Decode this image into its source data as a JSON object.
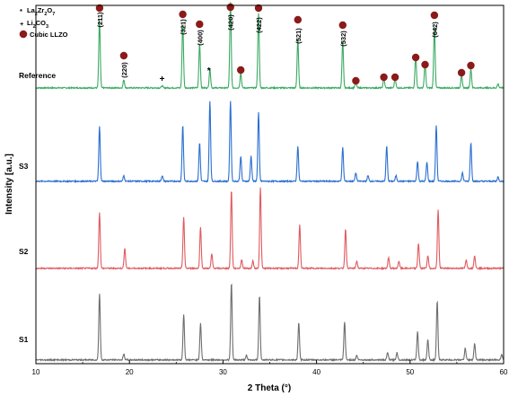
{
  "chart_data": {
    "type": "line",
    "xlabel": "2 Theta (°)",
    "ylabel": "Intensity [a.u.]",
    "xlim": [
      10,
      60
    ],
    "x_ticks": [
      10,
      20,
      30,
      40,
      50,
      60
    ],
    "y_ticks_shown": false,
    "grid": false,
    "legend": {
      "placement": "top-left",
      "entries": [
        {
          "symbol": "*",
          "label_main": "La",
          "sub1": "2",
          "mid": "Zr",
          "sub2": "2",
          "mid2": "O",
          "sub3": "7",
          "label_full": "La2Zr2O7"
        },
        {
          "symbol": "+",
          "label_main": "Li",
          "sub1": "2",
          "mid": "CO",
          "sub2": "3",
          "mid2": "",
          "sub3": "",
          "label_full": "Li2CO3"
        },
        {
          "symbol": "dot",
          "label_main": "Cubic LLZO",
          "sub1": "",
          "mid": "",
          "sub2": "",
          "mid2": "",
          "sub3": "",
          "label_full": "Cubic LLZO",
          "color": "#8b1a1a"
        }
      ]
    },
    "series": [
      {
        "name": "Reference",
        "color": "#3aaa63",
        "baseline_level": 0.0,
        "peaks": [
          {
            "x": 16.8,
            "h": 1.0
          },
          {
            "x": 19.4,
            "h": 0.12
          },
          {
            "x": 23.5,
            "h": 0.03
          },
          {
            "x": 25.7,
            "h": 0.95
          },
          {
            "x": 27.5,
            "h": 0.65
          },
          {
            "x": 28.6,
            "h": 0.28
          },
          {
            "x": 30.8,
            "h": 1.25
          },
          {
            "x": 31.9,
            "h": 0.22
          },
          {
            "x": 33.8,
            "h": 1.1
          },
          {
            "x": 38.0,
            "h": 0.72
          },
          {
            "x": 42.8,
            "h": 0.68
          },
          {
            "x": 44.2,
            "h": 0.09
          },
          {
            "x": 47.2,
            "h": 0.14
          },
          {
            "x": 48.4,
            "h": 0.14
          },
          {
            "x": 50.6,
            "h": 0.48
          },
          {
            "x": 51.6,
            "h": 0.36
          },
          {
            "x": 52.6,
            "h": 0.9
          },
          {
            "x": 55.5,
            "h": 0.18
          },
          {
            "x": 56.5,
            "h": 0.28
          },
          {
            "x": 59.4,
            "h": 0.06
          }
        ]
      },
      {
        "name": "S3",
        "color": "#2a6fd0",
        "baseline_level": 0.0,
        "peaks": [
          {
            "x": 16.8,
            "h": 0.78
          },
          {
            "x": 19.4,
            "h": 0.08
          },
          {
            "x": 23.5,
            "h": 0.08
          },
          {
            "x": 25.7,
            "h": 0.8
          },
          {
            "x": 27.5,
            "h": 0.55
          },
          {
            "x": 28.6,
            "h": 1.15
          },
          {
            "x": 30.8,
            "h": 1.15
          },
          {
            "x": 31.9,
            "h": 0.36
          },
          {
            "x": 33.0,
            "h": 0.36
          },
          {
            "x": 33.8,
            "h": 0.98
          },
          {
            "x": 38.0,
            "h": 0.5
          },
          {
            "x": 42.8,
            "h": 0.48
          },
          {
            "x": 44.2,
            "h": 0.12
          },
          {
            "x": 45.5,
            "h": 0.08
          },
          {
            "x": 47.5,
            "h": 0.5
          },
          {
            "x": 48.5,
            "h": 0.08
          },
          {
            "x": 50.8,
            "h": 0.28
          },
          {
            "x": 51.8,
            "h": 0.27
          },
          {
            "x": 52.8,
            "h": 0.8
          },
          {
            "x": 55.6,
            "h": 0.12
          },
          {
            "x": 56.5,
            "h": 0.55
          },
          {
            "x": 59.4,
            "h": 0.06
          }
        ]
      },
      {
        "name": "S2",
        "color": "#e05a5f",
        "baseline_level": 0.0,
        "peaks": [
          {
            "x": 16.8,
            "h": 0.78
          },
          {
            "x": 19.5,
            "h": 0.28
          },
          {
            "x": 25.8,
            "h": 0.72
          },
          {
            "x": 27.6,
            "h": 0.58
          },
          {
            "x": 28.8,
            "h": 0.2
          },
          {
            "x": 30.9,
            "h": 1.1
          },
          {
            "x": 32.0,
            "h": 0.12
          },
          {
            "x": 33.2,
            "h": 0.1
          },
          {
            "x": 34.0,
            "h": 1.12
          },
          {
            "x": 38.2,
            "h": 0.6
          },
          {
            "x": 43.1,
            "h": 0.55
          },
          {
            "x": 44.3,
            "h": 0.1
          },
          {
            "x": 47.7,
            "h": 0.15
          },
          {
            "x": 48.8,
            "h": 0.1
          },
          {
            "x": 50.9,
            "h": 0.35
          },
          {
            "x": 51.9,
            "h": 0.18
          },
          {
            "x": 53.0,
            "h": 0.82
          },
          {
            "x": 56.0,
            "h": 0.12
          },
          {
            "x": 56.9,
            "h": 0.18
          }
        ]
      },
      {
        "name": "S1",
        "color": "#6e6e6e",
        "baseline_level": 0.0,
        "peaks": [
          {
            "x": 16.8,
            "h": 0.9
          },
          {
            "x": 19.4,
            "h": 0.08
          },
          {
            "x": 25.8,
            "h": 0.62
          },
          {
            "x": 27.6,
            "h": 0.5
          },
          {
            "x": 30.9,
            "h": 1.05
          },
          {
            "x": 32.5,
            "h": 0.06
          },
          {
            "x": 33.9,
            "h": 0.88
          },
          {
            "x": 38.1,
            "h": 0.5
          },
          {
            "x": 43.0,
            "h": 0.52
          },
          {
            "x": 44.3,
            "h": 0.06
          },
          {
            "x": 47.6,
            "h": 0.1
          },
          {
            "x": 48.6,
            "h": 0.1
          },
          {
            "x": 50.8,
            "h": 0.38
          },
          {
            "x": 51.9,
            "h": 0.28
          },
          {
            "x": 52.9,
            "h": 0.8
          },
          {
            "x": 55.9,
            "h": 0.16
          },
          {
            "x": 56.9,
            "h": 0.22
          },
          {
            "x": 59.8,
            "h": 0.08
          }
        ]
      }
    ],
    "annotations": {
      "hkl": [
        {
          "label": "(211)",
          "x": 16.8,
          "series": "Reference"
        },
        {
          "label": "(220)",
          "x": 19.4,
          "series": "Reference"
        },
        {
          "label": "(321)",
          "x": 25.7,
          "series": "Reference"
        },
        {
          "label": "(400)",
          "x": 27.5,
          "series": "Reference"
        },
        {
          "label": "(420)",
          "x": 30.8,
          "series": "Reference"
        },
        {
          "label": "(422)",
          "x": 33.8,
          "series": "Reference"
        },
        {
          "label": "(521)",
          "x": 38.0,
          "series": "Reference"
        },
        {
          "label": "(532)",
          "x": 42.8,
          "series": "Reference"
        },
        {
          "label": "(642)",
          "x": 52.6,
          "series": "Reference"
        }
      ],
      "llzo_dots_x": [
        16.8,
        19.4,
        25.7,
        27.5,
        30.8,
        31.9,
        33.8,
        38.0,
        42.8,
        44.2,
        47.2,
        48.4,
        50.6,
        51.6,
        52.6,
        55.5,
        56.5
      ],
      "la2zr2o7_marker": {
        "symbol": "*",
        "x": 28.6
      },
      "li2co3_marker": {
        "symbol": "+",
        "x": 23.5
      }
    }
  }
}
